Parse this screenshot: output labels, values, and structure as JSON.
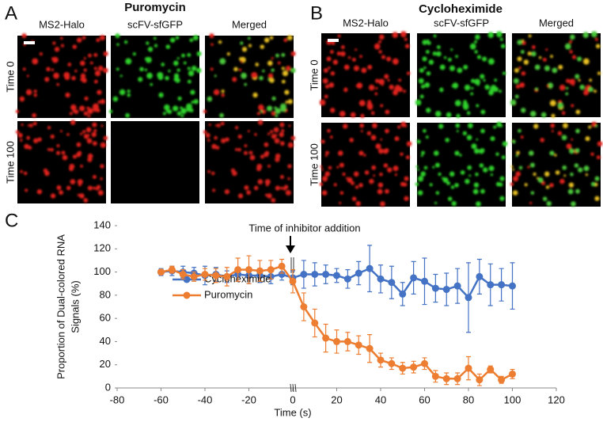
{
  "panels": [
    {
      "label": "A",
      "title": "Puromycin",
      "columns": [
        "MS2-Halo",
        "scFV-sfGFP",
        "Merged"
      ],
      "rows": [
        "Time 0",
        "Time 100"
      ]
    },
    {
      "label": "B",
      "title": "Cycloheximide",
      "columns": [
        "MS2-Halo",
        "scFV-sfGFP",
        "Merged"
      ],
      "rows": [
        "Time 0",
        "Time 100"
      ]
    }
  ],
  "chart_data": {
    "type": "line",
    "label": "C",
    "ylabel": [
      "Proportion of Dual-colored RNA",
      "Signals (%)"
    ],
    "xlabel": "Time (s)",
    "annotation": "Time of inhibitor addition",
    "x": [
      -60,
      -55,
      -50,
      -45,
      -40,
      -35,
      -30,
      -25,
      -20,
      -15,
      -10,
      -5,
      0,
      5,
      10,
      15,
      20,
      25,
      30,
      35,
      40,
      45,
      50,
      55,
      60,
      65,
      70,
      75,
      80,
      85,
      90,
      95,
      100
    ],
    "series": [
      {
        "name": "Cycloheximide",
        "color": "#4472c4",
        "values": [
          100,
          101,
          100,
          99,
          97,
          98,
          96,
          98,
          97,
          97,
          96,
          98,
          95,
          98,
          98,
          98,
          97,
          94,
          99,
          103,
          94,
          91,
          81,
          95,
          92,
          86,
          85,
          88,
          78,
          96,
          89,
          89,
          88
        ],
        "errors": [
          3,
          4,
          5,
          5,
          8,
          6,
          5,
          6,
          7,
          6,
          6,
          5,
          6,
          12,
          10,
          8,
          6,
          8,
          10,
          20,
          12,
          14,
          10,
          14,
          20,
          12,
          14,
          15,
          30,
          15,
          18,
          14,
          20
        ]
      },
      {
        "name": "Puromycin",
        "color": "#ed7d31",
        "values": [
          100,
          102,
          98,
          96,
          98,
          97,
          96,
          102,
          102,
          101,
          102,
          105,
          92,
          70,
          56,
          43,
          40,
          40,
          37,
          34,
          24,
          21,
          17,
          18,
          21,
          10,
          8,
          8,
          17,
          7,
          16,
          7,
          12
        ],
        "errors": [
          2,
          3,
          4,
          4,
          5,
          6,
          8,
          10,
          12,
          9,
          8,
          6,
          10,
          12,
          12,
          12,
          10,
          8,
          8,
          12,
          6,
          5,
          5,
          5,
          5,
          5,
          5,
          5,
          10,
          5,
          3,
          3,
          4
        ]
      }
    ],
    "xlim": [
      -80,
      120
    ],
    "xticks": [
      -80,
      -60,
      -40,
      -20,
      0,
      20,
      40,
      60,
      80,
      100,
      120
    ],
    "ylim": [
      0,
      140
    ],
    "yticks": [
      0,
      20,
      40,
      60,
      80,
      100,
      120,
      140
    ],
    "legend": "left"
  }
}
